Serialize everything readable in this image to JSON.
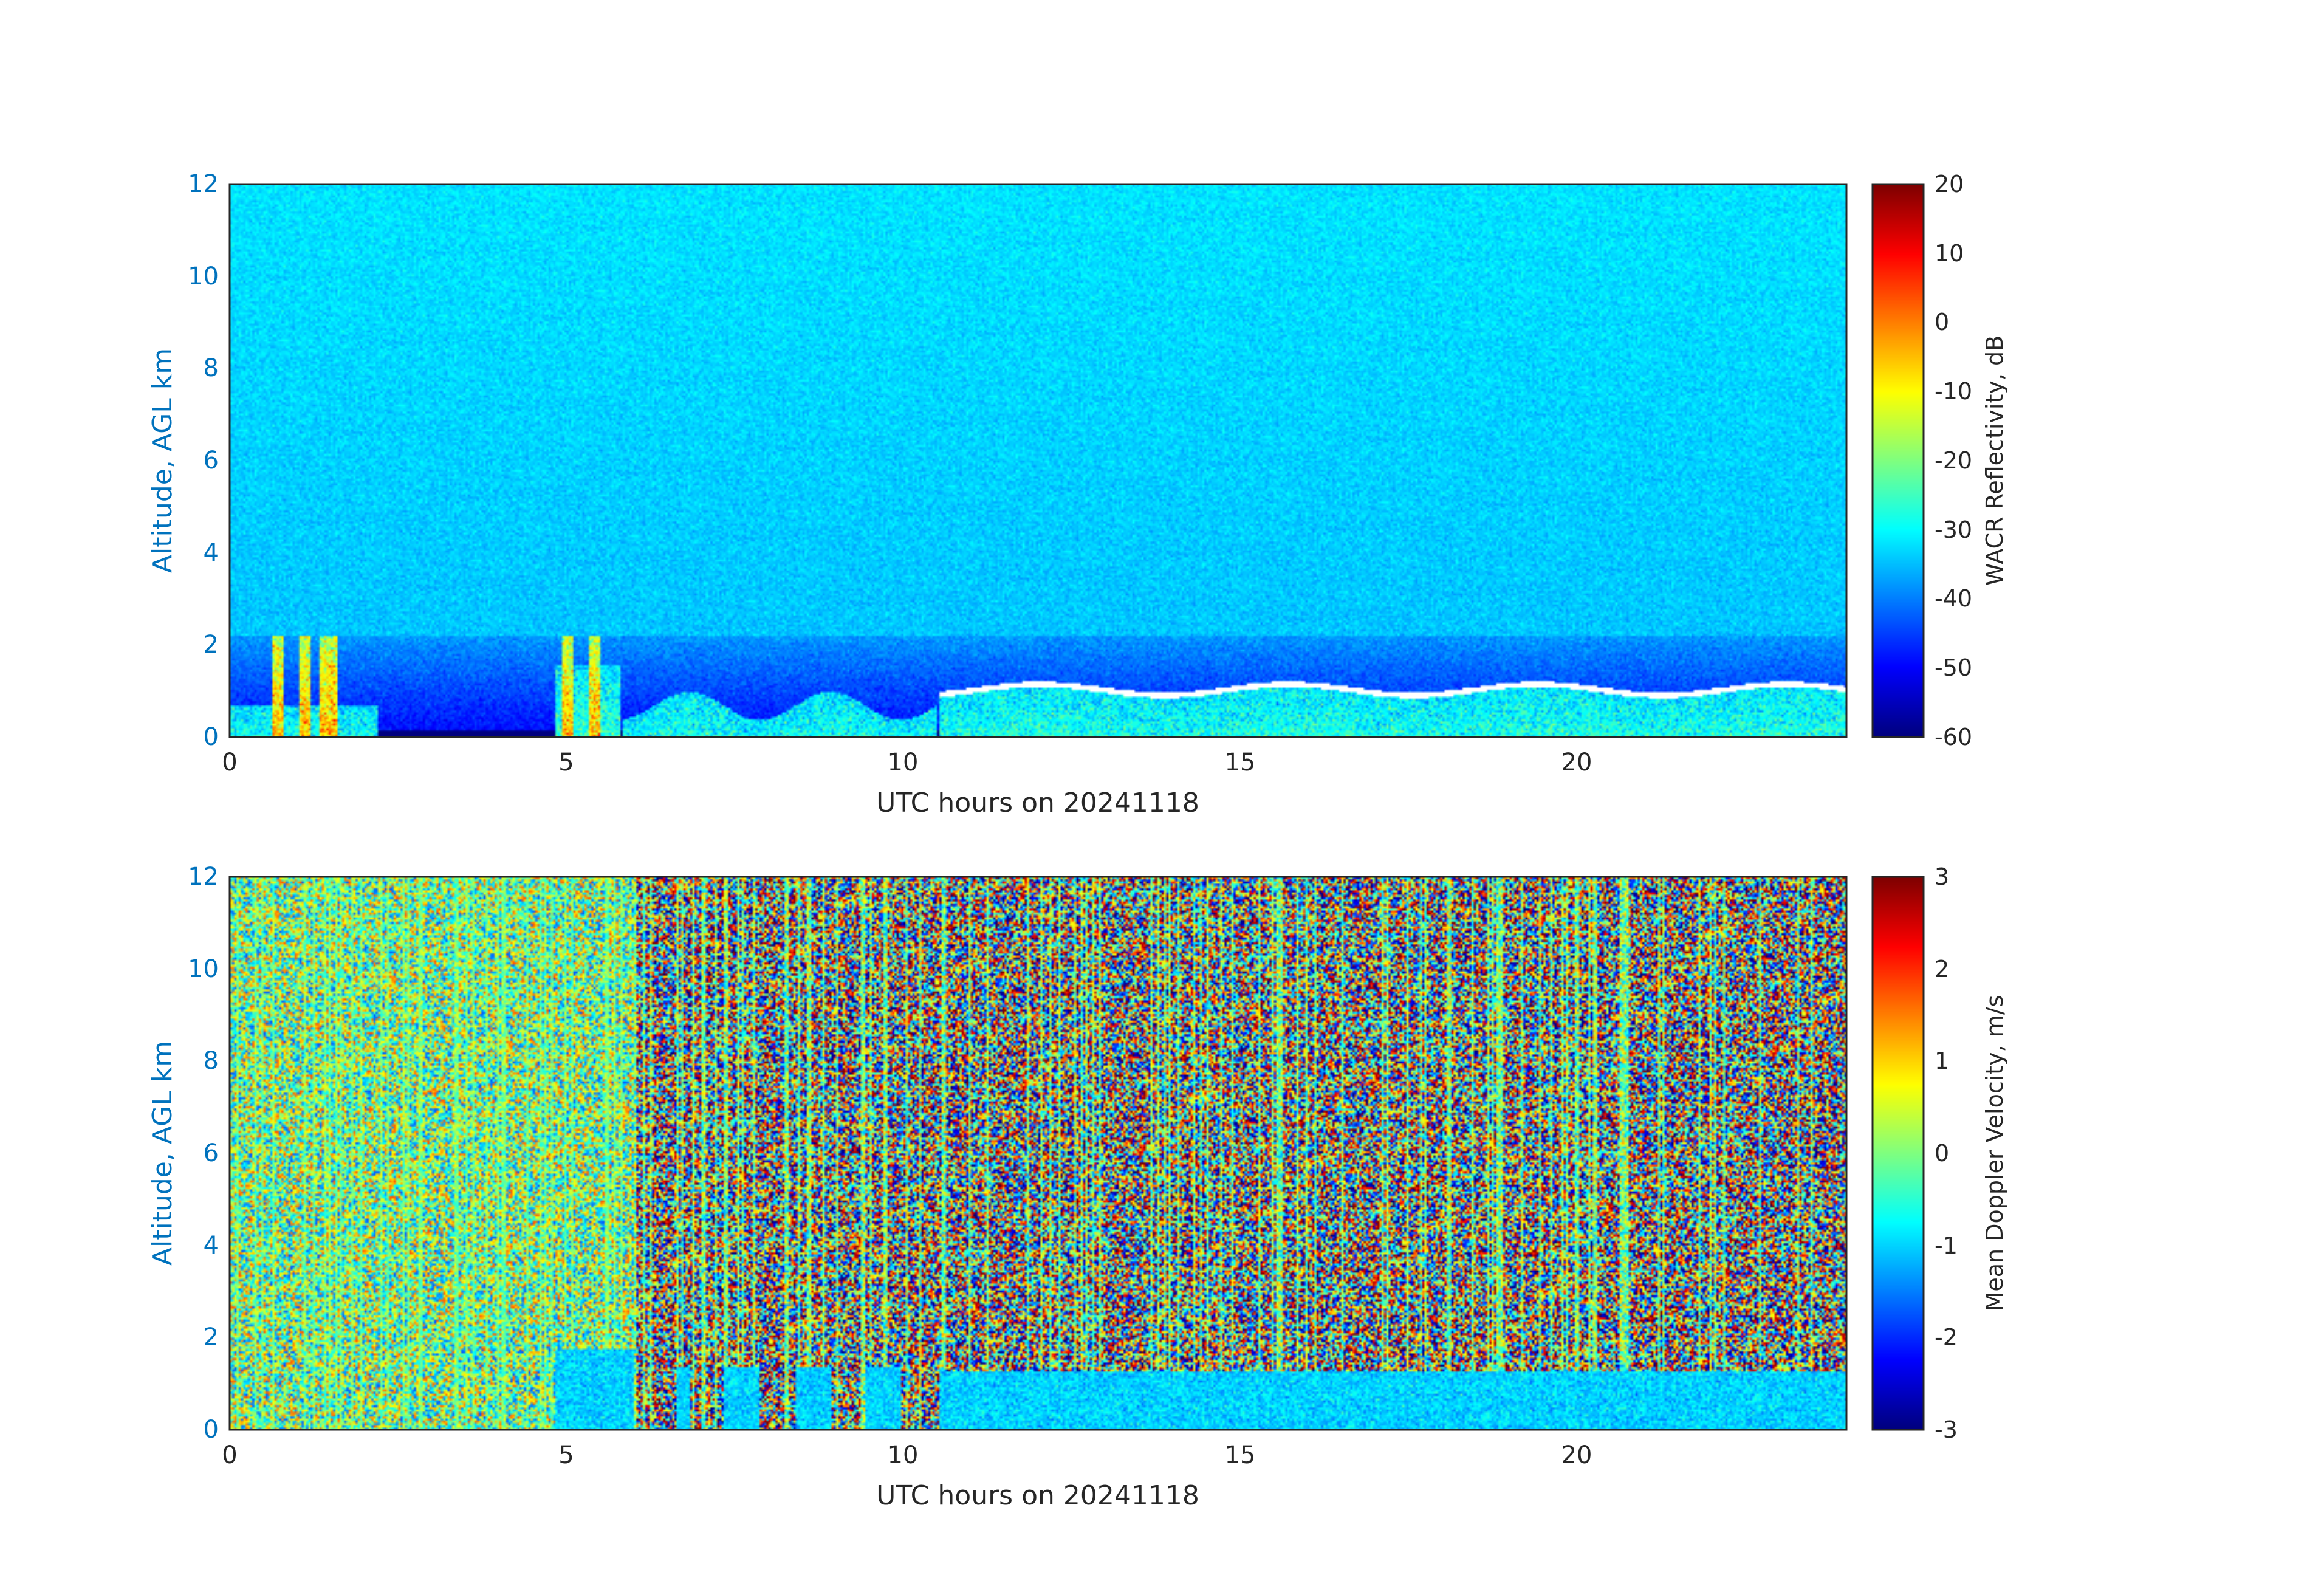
{
  "chart_data": [
    {
      "type": "heatmap",
      "title": "",
      "xlabel": "UTC hours on 20241118",
      "ylabel": "Altitude, AGL km",
      "xlim": [
        0,
        24
      ],
      "ylim": [
        0,
        12
      ],
      "x_ticks": [
        0,
        5,
        10,
        15,
        20
      ],
      "y_ticks": [
        0,
        2,
        4,
        6,
        8,
        10,
        12
      ],
      "colorbar": {
        "label": "WACR Reflectivity, dB",
        "range": [
          -60,
          20
        ],
        "ticks": [
          20,
          10,
          0,
          -10,
          -20,
          -30,
          -40,
          -50,
          -60
        ],
        "colormap": "jet"
      },
      "background_level": -35,
      "features": {
        "cloud_layer_top_km": 1.2,
        "cloud_layer_span_hours": [
          10.5,
          24
        ],
        "convective_cells_hours": [
          0.7,
          1.1,
          1.4,
          1.5,
          5.0,
          5.4
        ]
      }
    },
    {
      "type": "heatmap",
      "title": "",
      "xlabel": "UTC hours on 20241118",
      "ylabel": "Altitude, AGL km",
      "xlim": [
        0,
        24
      ],
      "ylim": [
        0,
        12
      ],
      "x_ticks": [
        0,
        5,
        10,
        15,
        20
      ],
      "y_ticks": [
        0,
        2,
        4,
        6,
        8,
        10,
        12
      ],
      "colorbar": {
        "label": "Mean Doppler Velocity, m/s",
        "range": [
          -3,
          3
        ],
        "ticks": [
          3,
          2,
          1,
          0,
          -1,
          -2,
          -3
        ],
        "colormap": "jet"
      },
      "background": "random noise",
      "features": {
        "cloud_layer_top_km": 1.3,
        "cloud_layer_span_hours": [
          10.5,
          24
        ],
        "cloud_velocity_ms": -1
      }
    }
  ]
}
